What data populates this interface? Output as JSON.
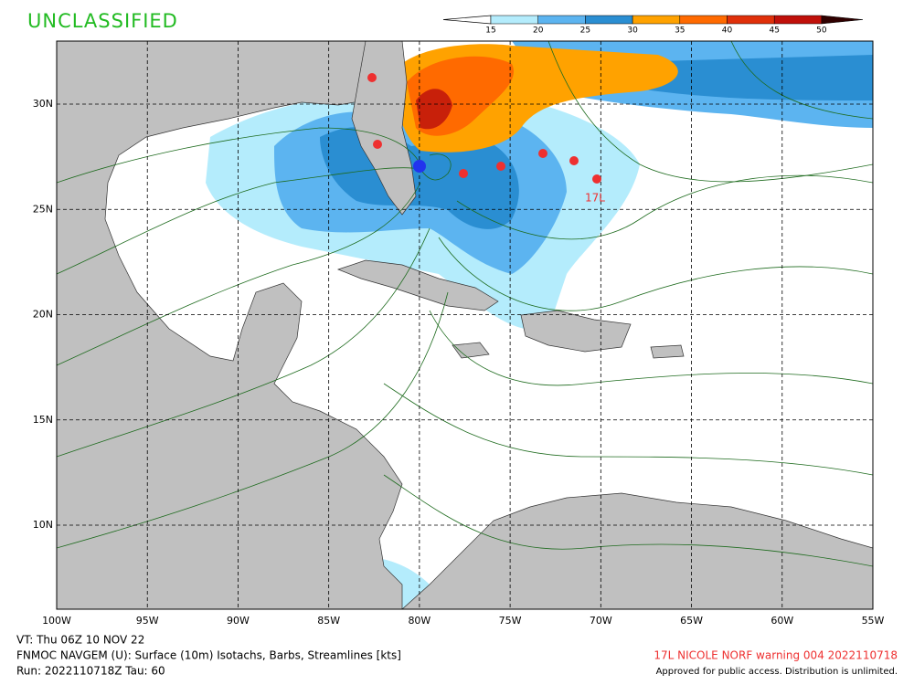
{
  "header": {
    "classification": "UNCLASSIFIED"
  },
  "colorbar": {
    "levels": [
      15,
      20,
      25,
      30,
      35,
      40,
      45,
      50
    ],
    "colors": [
      "#b4ecfc",
      "#5cb4f0",
      "#2a8ed2",
      "#ffa200",
      "#ff6a00",
      "#e0300a",
      "#c0100a",
      "#8c0000",
      "#300000"
    ]
  },
  "map": {
    "lon_labels": [
      "100W",
      "95W",
      "90W",
      "85W",
      "80W",
      "75W",
      "70W",
      "65W",
      "60W",
      "55W"
    ],
    "lat_labels": [
      "30N",
      "25N",
      "20N",
      "15N",
      "10N"
    ],
    "storm_label": "17L"
  },
  "footer": {
    "valid_time": "VT: Thu 06Z 10 NOV 22",
    "model": "FNMOC NAVGEM (U): Surface (10m) Isotachs, Barbs, Streamlines [kts]",
    "run": "Run: 2022110718Z Tau: 60",
    "warning": "17L NICOLE NORF warning 004 2022110718",
    "approval": "Approved for public access. Distribution is unlimited."
  }
}
